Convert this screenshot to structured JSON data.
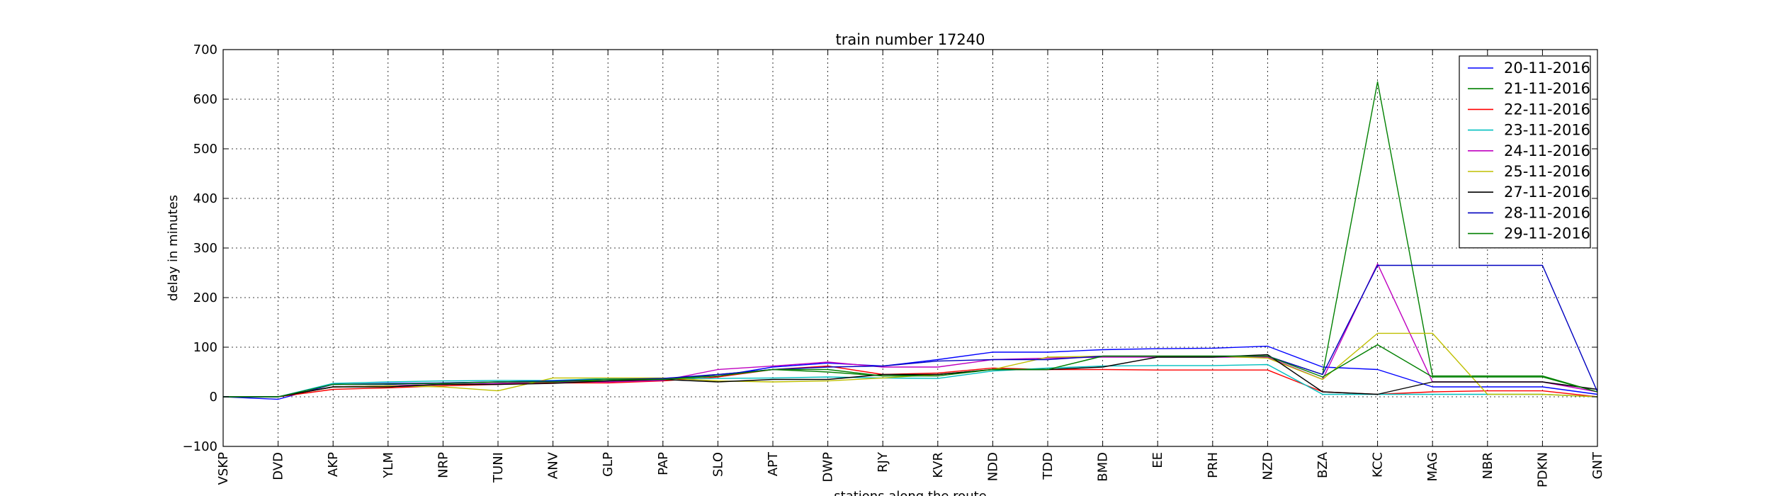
{
  "chart_data": {
    "type": "line",
    "title": "train number 17240",
    "xlabel": "stations along the route",
    "ylabel": "delay in minutes",
    "ylim": [
      -100,
      700
    ],
    "yticks": [
      -100,
      0,
      100,
      200,
      300,
      400,
      500,
      600,
      700
    ],
    "ytick_labels": [
      "−100",
      "0",
      "100",
      "200",
      "300",
      "400",
      "500",
      "600",
      "700"
    ],
    "grid": true,
    "legend_position": "top-right",
    "categories": [
      "VSKP",
      "DVD",
      "AKP",
      "YLM",
      "NRP",
      "TUNI",
      "ANV",
      "GLP",
      "PAP",
      "SLO",
      "APT",
      "DWP",
      "RJY",
      "KVR",
      "NDD",
      "TDD",
      "BMD",
      "EE",
      "PRH",
      "NZD",
      "BZA",
      "KCC",
      "MAG",
      "NBR",
      "PDKN",
      "GNT"
    ],
    "series": [
      {
        "name": "20-11-2016",
        "color": "#0000ff",
        "values": [
          0,
          -5,
          25,
          27,
          28,
          30,
          32,
          35,
          37,
          42,
          60,
          68,
          62,
          75,
          90,
          90,
          95,
          97,
          98,
          102,
          60,
          55,
          20,
          20,
          20,
          5
        ]
      },
      {
        "name": "21-11-2016",
        "color": "#008000",
        "values": [
          0,
          0,
          20,
          22,
          25,
          27,
          30,
          32,
          35,
          45,
          55,
          50,
          42,
          45,
          55,
          55,
          82,
          82,
          82,
          82,
          45,
          635,
          42,
          42,
          42,
          10
        ]
      },
      {
        "name": "22-11-2016",
        "color": "#ff0000",
        "values": [
          0,
          0,
          15,
          18,
          22,
          25,
          28,
          28,
          32,
          40,
          55,
          62,
          45,
          48,
          58,
          55,
          55,
          54,
          54,
          54,
          10,
          5,
          10,
          12,
          12,
          0
        ]
      },
      {
        "name": "23-11-2016",
        "color": "#00bfbf",
        "values": [
          0,
          0,
          27,
          30,
          32,
          33,
          33,
          37,
          37,
          37,
          38,
          40,
          38,
          37,
          52,
          58,
          62,
          63,
          63,
          65,
          5,
          5,
          5,
          5,
          5,
          0
        ]
      },
      {
        "name": "24-11-2016",
        "color": "#bf00bf",
        "values": [
          0,
          0,
          20,
          22,
          25,
          27,
          30,
          30,
          33,
          55,
          62,
          70,
          60,
          60,
          75,
          78,
          80,
          80,
          80,
          80,
          35,
          268,
          30,
          30,
          30,
          10
        ]
      },
      {
        "name": "25-11-2016",
        "color": "#bfbf00",
        "values": [
          0,
          0,
          20,
          22,
          20,
          12,
          38,
          38,
          38,
          32,
          30,
          32,
          38,
          45,
          55,
          80,
          82,
          82,
          82,
          78,
          35,
          128,
          128,
          5,
          5,
          0
        ]
      },
      {
        "name": "27-11-2016",
        "color": "#000000",
        "values": [
          0,
          0,
          20,
          20,
          25,
          25,
          27,
          32,
          35,
          30,
          35,
          35,
          45,
          45,
          55,
          55,
          60,
          80,
          80,
          85,
          10,
          5,
          30,
          30,
          30,
          15
        ]
      },
      {
        "name": "28-11-2016",
        "color": "#0000bf",
        "values": [
          0,
          0,
          25,
          25,
          28,
          30,
          32,
          35,
          37,
          45,
          55,
          60,
          62,
          72,
          75,
          75,
          82,
          82,
          82,
          82,
          45,
          265,
          265,
          265,
          265,
          10
        ]
      },
      {
        "name": "29-11-2016",
        "color": "#008000",
        "values": [
          0,
          0,
          25,
          26,
          27,
          30,
          30,
          35,
          35,
          42,
          55,
          55,
          42,
          42,
          55,
          55,
          82,
          82,
          82,
          82,
          40,
          105,
          40,
          40,
          40,
          10
        ]
      }
    ]
  }
}
